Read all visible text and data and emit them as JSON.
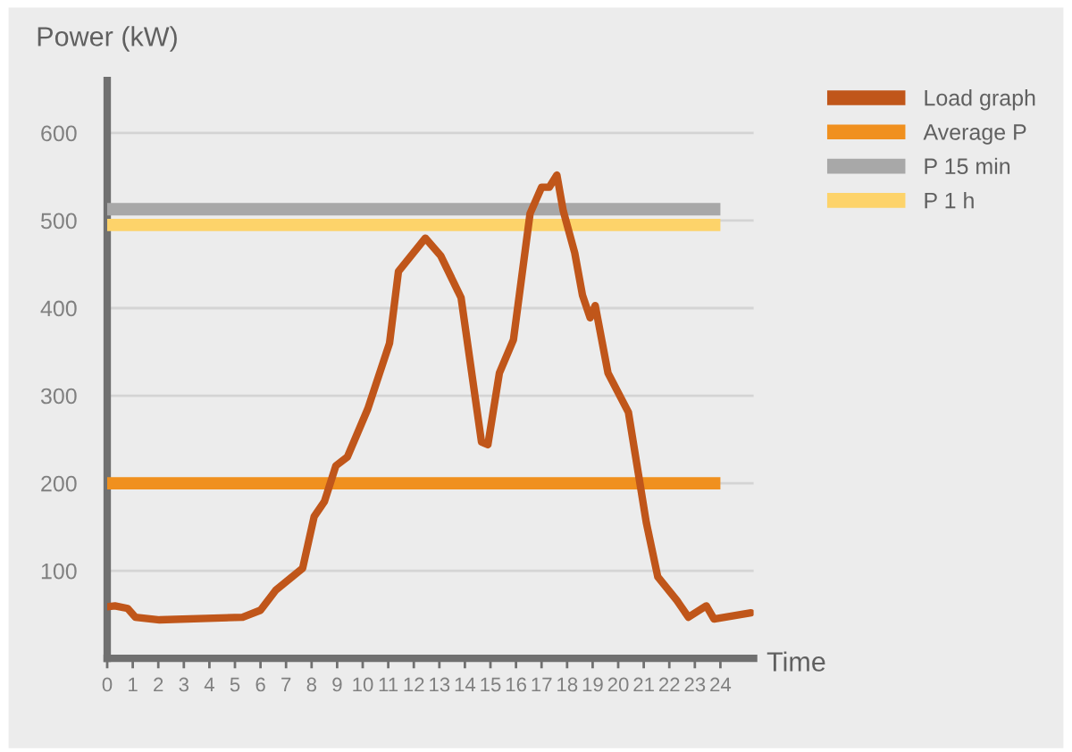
{
  "chart_data": {
    "type": "line",
    "ylabel": "Power (kW)",
    "xlabel": "Time",
    "xlim": [
      0,
      25.3
    ],
    "xticks": [
      0,
      1,
      2,
      3,
      4,
      5,
      6,
      7,
      8,
      9,
      10,
      11,
      12,
      13,
      14,
      15,
      16,
      17,
      18,
      19,
      20,
      21,
      22,
      23,
      24
    ],
    "ylim": [
      0,
      660
    ],
    "yticks": [
      100,
      200,
      300,
      400,
      500,
      600
    ],
    "grid": "y",
    "legend": "right",
    "series": [
      {
        "name": "Load graph",
        "color": "#c0561a",
        "x": [
          0,
          0.3,
          0.8,
          1.1,
          2.05,
          5.3,
          6.0,
          6.6,
          7.65,
          8.1,
          8.5,
          8.95,
          9.4,
          10.2,
          11.05,
          11.4,
          12.45,
          13.05,
          13.85,
          14.65,
          14.9,
          15.35,
          15.9,
          16.55,
          17.0,
          17.3,
          17.6,
          17.85,
          18.3,
          18.6,
          18.9,
          19.1,
          19.6,
          20.4,
          21.1,
          21.55,
          22.3,
          22.75,
          23.45,
          23.75,
          25.2
        ],
        "values": [
          59,
          60,
          57,
          47,
          44,
          47,
          55,
          78,
          103,
          162,
          179,
          220,
          230,
          285,
          360,
          442,
          480,
          460,
          412,
          247,
          244,
          326,
          364,
          508,
          538,
          538,
          552,
          511,
          463,
          415,
          389,
          403,
          326,
          281,
          155,
          93,
          66,
          47,
          60,
          45,
          52
        ]
      }
    ],
    "ref_lines": [
      {
        "axis": "y",
        "value": 200,
        "label": "Average P",
        "color": "#f0901e"
      },
      {
        "axis": "y",
        "value": 513,
        "label": "P 15 min",
        "color": "#a8a8a8"
      },
      {
        "axis": "y",
        "value": 495,
        "label": "P 1 h",
        "color": "#fdd36a"
      }
    ]
  }
}
